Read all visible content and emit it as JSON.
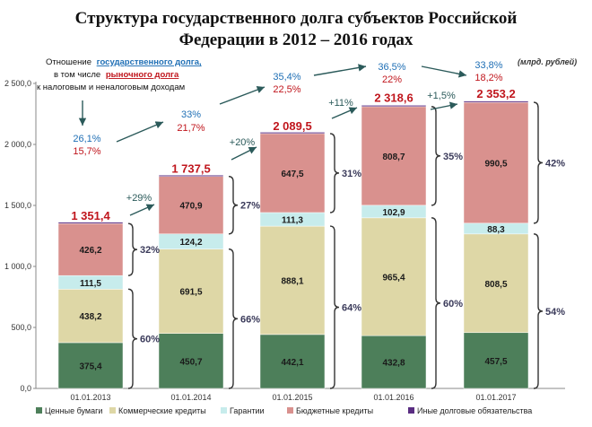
{
  "title_line1": "Структура государственного долга субъектов Российской",
  "title_line2": "Федерации в 2012 – 2016 годах",
  "units": "(млрд. рублей)",
  "note": {
    "line1_prefix": "Отношение",
    "line1_link": "государственного долга",
    "line1_suffix": ",",
    "line2_prefix": "в том числе",
    "line2_link": "рыночного долга",
    "line3": "к налоговым и неналоговым доходам"
  },
  "colors": {
    "securities": "#4d7f5a",
    "commercial": "#ded7a6",
    "guarantees": "#c7ecec",
    "budget": "#d9918e",
    "other": "#5a2d82",
    "blue_text": "#1f6fb5",
    "red_text": "#c0161d"
  },
  "chart_data": {
    "type": "bar",
    "stacked": true,
    "categories": [
      "01.01.2013",
      "01.01.2014",
      "01.01.2015",
      "01.01.2016",
      "01.01.2017"
    ],
    "ylim": [
      0,
      2500
    ],
    "yticks": [
      "0,0",
      "500,0",
      "1 000,0",
      "1 500,0",
      "2 000,0",
      "2 500,0"
    ],
    "ytick_values": [
      0,
      500,
      1000,
      1500,
      2000,
      2500
    ],
    "grid": false,
    "legend_position": "bottom",
    "series": [
      {
        "name": "Ценные бумаги",
        "key": "securities",
        "values": [
          375.4,
          450.7,
          442.1,
          432.8,
          457.5
        ],
        "labels": [
          "375,4",
          "450,7",
          "442,1",
          "432,8",
          "457,5"
        ]
      },
      {
        "name": "Коммерческие кредиты",
        "key": "commercial",
        "values": [
          438.2,
          691.5,
          888.1,
          965.4,
          808.5
        ],
        "labels": [
          "438,2",
          "691,5",
          "888,1",
          "965,4",
          "808,5"
        ]
      },
      {
        "name": "Гарантии",
        "key": "guarantees",
        "values": [
          111.5,
          124.2,
          111.3,
          102.9,
          88.3
        ],
        "labels": [
          "111,5",
          "124,2",
          "111,3",
          "102,9",
          "88,3"
        ]
      },
      {
        "name": "Бюджетные кредиты",
        "key": "budget",
        "values": [
          426.2,
          470.9,
          647.5,
          808.7,
          990.5
        ],
        "labels": [
          "426,2",
          "470,9",
          "647,5",
          "808,7",
          "990,5"
        ]
      },
      {
        "name": "Иные долговые обязательства",
        "key": "other",
        "values": [
          0.1,
          0.2,
          0.5,
          8.8,
          8.4
        ]
      }
    ],
    "totals": [
      "1 351,4",
      "1 737,5",
      "2 089,5",
      "2 318,6",
      "2 353,2"
    ],
    "total_values": [
      1351.4,
      1737.5,
      2089.5,
      2318.6,
      2353.2
    ],
    "debt_to_revenue": [
      "26,1%",
      "33%",
      "35,4%",
      "36,5%",
      "33,8%"
    ],
    "market_debt_to_revenue": [
      "15,7%",
      "21,7%",
      "22,5%",
      "22%",
      "18,2%"
    ],
    "growth": [
      "+29%",
      "+20%",
      "+11%",
      "+1,5%"
    ],
    "market_share_pct": [
      "60%",
      "66%",
      "64%",
      "60%",
      "54%"
    ],
    "budget_share_pct": [
      "32%",
      "27%",
      "31%",
      "35%",
      "42%"
    ]
  }
}
